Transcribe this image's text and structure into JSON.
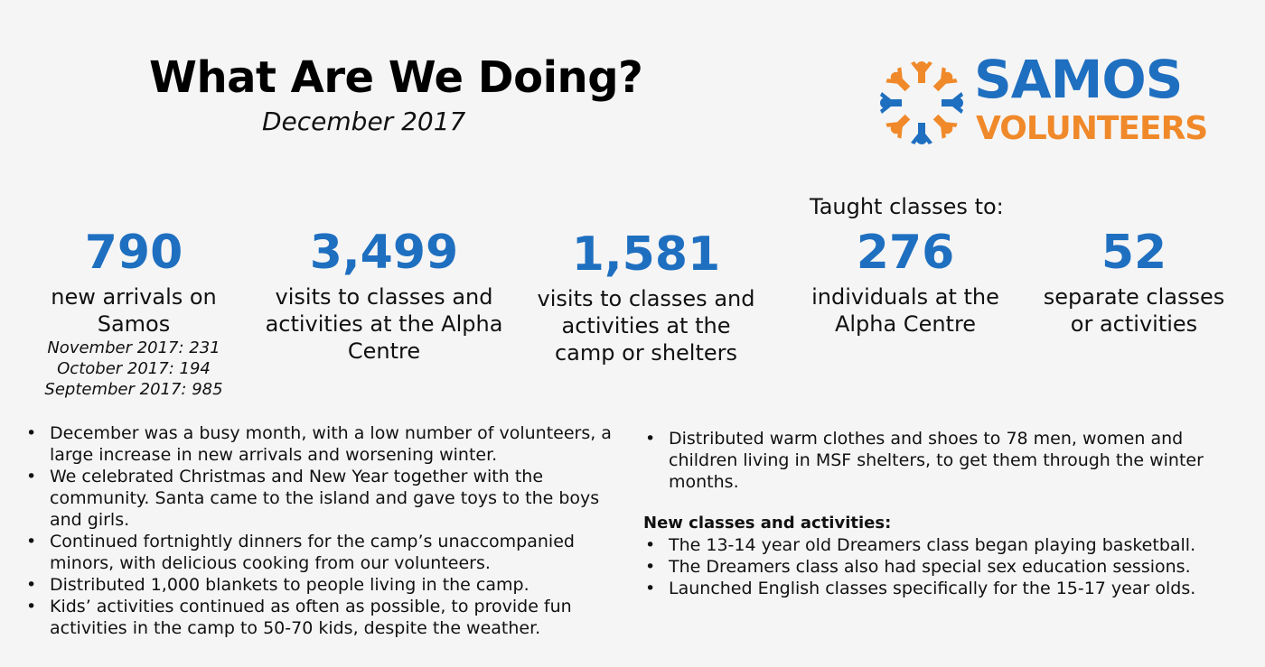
{
  "header": {
    "title": "What Are We Doing?",
    "subtitle": "December 2017"
  },
  "logo": {
    "line1": "SAMOS",
    "line2": "VOLUNTEERS",
    "colors": {
      "blue": "#1f6fc0",
      "orange": "#f0892a"
    }
  },
  "taught_heading": "Taught classes to:",
  "stats": [
    {
      "number": "790",
      "label_lines": [
        "new arrivals on",
        "Samos"
      ],
      "notes": [
        "November 2017: 231",
        "October 2017: 194",
        "September 2017: 985"
      ]
    },
    {
      "number": "3,499",
      "label_lines": [
        "visits to classes and",
        "activities at the Alpha",
        "Centre"
      ]
    },
    {
      "number": "1,581",
      "label_lines": [
        "visits to classes and",
        "activities at the",
        "camp or shelters"
      ]
    },
    {
      "number": "276",
      "label_lines": [
        "individuals at the",
        "Alpha Centre"
      ]
    },
    {
      "number": "52",
      "label_lines": [
        "separate classes",
        "or activities"
      ]
    }
  ],
  "left_bullets": [
    "December was a busy month, with a low number of volunteers, a large increase in new arrivals and worsening winter.",
    "We celebrated Christmas and New Year together with the community.  Santa came to the island and gave toys to the boys and girls.",
    "Continued fortnightly dinners for the camp’s unaccompanied minors, with delicious cooking from our volunteers.",
    "Distributed 1,000 blankets to people living in the camp.",
    "Kids’ activities continued as often as possible, to provide fun activities in the camp to 50-70 kids, despite the weather."
  ],
  "right_bullets": [
    "Distributed warm clothes and shoes to 78 men, women and children living in MSF shelters, to get them through the winter months."
  ],
  "new_section": {
    "heading": "New classes and activities:",
    "items": [
      "The 13-14 year old Dreamers class began playing basketball.",
      "The Dreamers class also had special sex education sessions.",
      "Launched English classes specifically for the 15-17 year olds."
    ]
  }
}
